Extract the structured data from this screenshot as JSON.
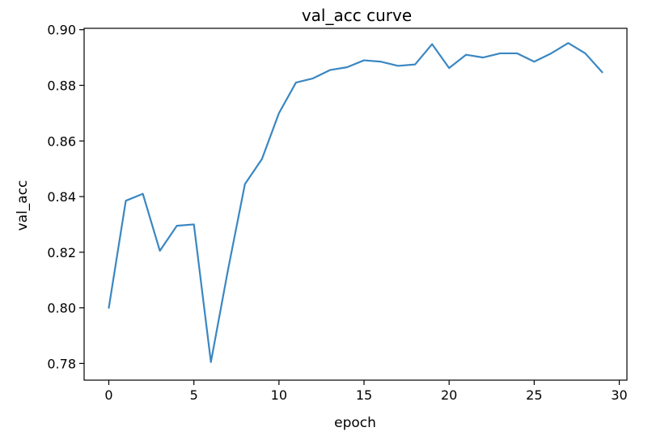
{
  "chart_data": {
    "type": "line",
    "title": "val_acc curve",
    "xlabel": "epoch",
    "ylabel": "val_acc",
    "xlim": [
      -1.45,
      30.45
    ],
    "ylim": [
      0.774,
      0.9005
    ],
    "xticks": [
      0,
      5,
      10,
      15,
      20,
      25,
      30
    ],
    "yticks": [
      0.78,
      0.8,
      0.82,
      0.84,
      0.86,
      0.88,
      0.9
    ],
    "ytick_labels": [
      "0.78",
      "0.80",
      "0.82",
      "0.84",
      "0.86",
      "0.88",
      "0.90"
    ],
    "grid": false,
    "series": [
      {
        "color": "#3a87c2",
        "x": [
          0,
          1,
          2,
          3,
          4,
          5,
          6,
          7,
          8,
          9,
          10,
          11,
          12,
          13,
          14,
          15,
          16,
          17,
          18,
          19,
          20,
          21,
          22,
          23,
          24,
          25,
          26,
          27,
          28,
          29
        ],
        "y": [
          0.8,
          0.8385,
          0.841,
          0.8205,
          0.8295,
          0.83,
          0.7805,
          0.8135,
          0.8445,
          0.8535,
          0.87,
          0.881,
          0.8825,
          0.8855,
          0.8865,
          0.889,
          0.8885,
          0.887,
          0.8875,
          0.8948,
          0.8862,
          0.891,
          0.89,
          0.8915,
          0.8915,
          0.8885,
          0.8915,
          0.8952,
          0.8915,
          0.8847
        ]
      }
    ]
  }
}
